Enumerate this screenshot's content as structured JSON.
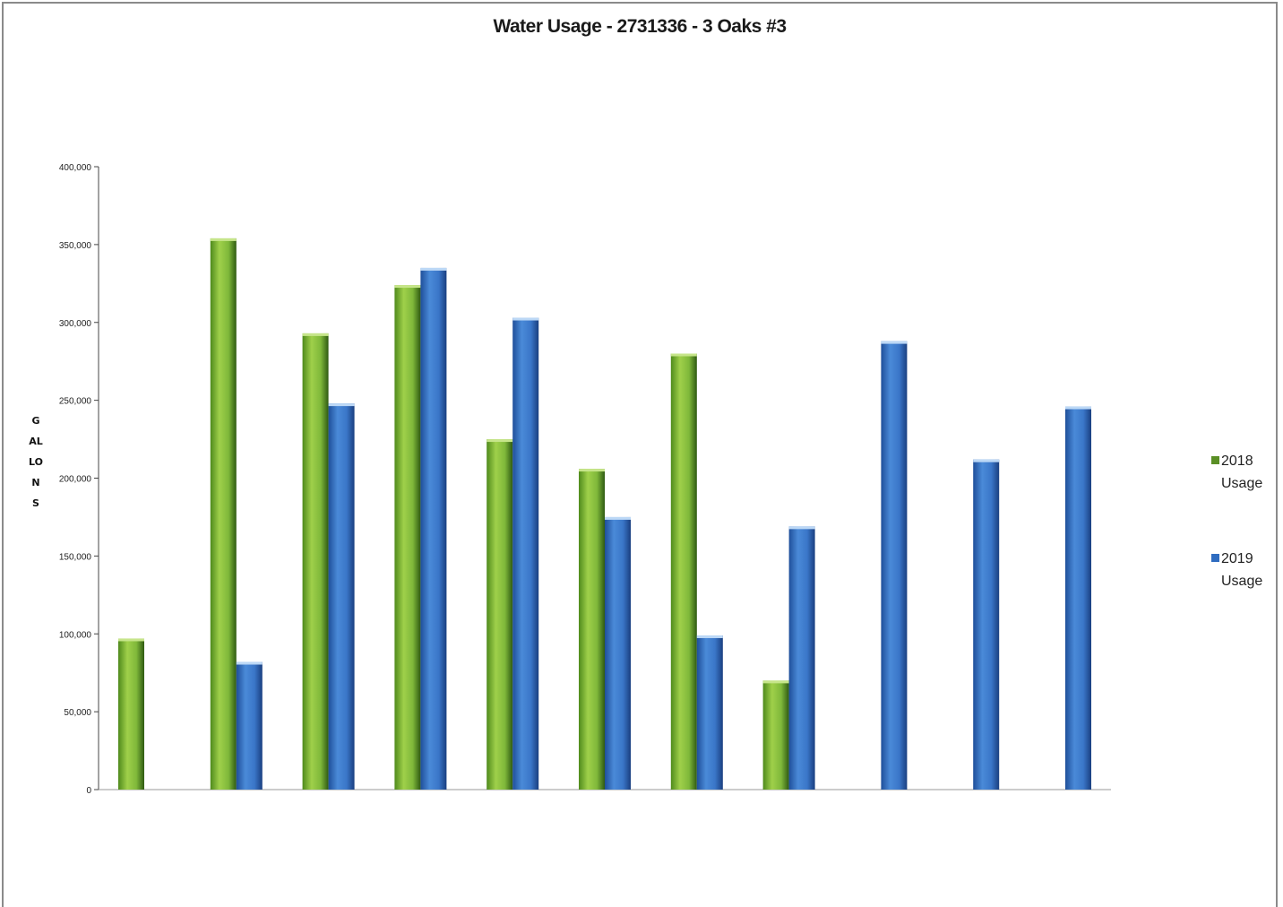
{
  "chart_data": {
    "type": "bar",
    "title": "Water Usage - 2731336 - 3 Oaks #3",
    "ylabel": "GALLONS",
    "xlabel": "",
    "ylim": [
      0,
      400000
    ],
    "yticks": [
      "0",
      "50,000",
      "100,000",
      "150,000",
      "200,000",
      "250,000",
      "300,000",
      "350,000",
      "400,000"
    ],
    "ytick_values": [
      0,
      50000,
      100000,
      150000,
      200000,
      250000,
      300000,
      350000,
      400000
    ],
    "categories": [
      "",
      "",
      "",
      "",
      "",
      "",
      "",
      "",
      "",
      "",
      ""
    ],
    "series": [
      {
        "name": "2018 Usage",
        "color": "#6aa62a",
        "values": [
          97000,
          354000,
          293000,
          324000,
          225000,
          206000,
          280000,
          70000,
          null,
          null,
          null
        ]
      },
      {
        "name": "2019 Usage",
        "color": "#2f6cc0",
        "values": [
          null,
          82000,
          248000,
          335000,
          303000,
          175000,
          99000,
          169000,
          288000,
          212000,
          246000
        ]
      }
    ],
    "legend_position": "right",
    "grid": false
  }
}
